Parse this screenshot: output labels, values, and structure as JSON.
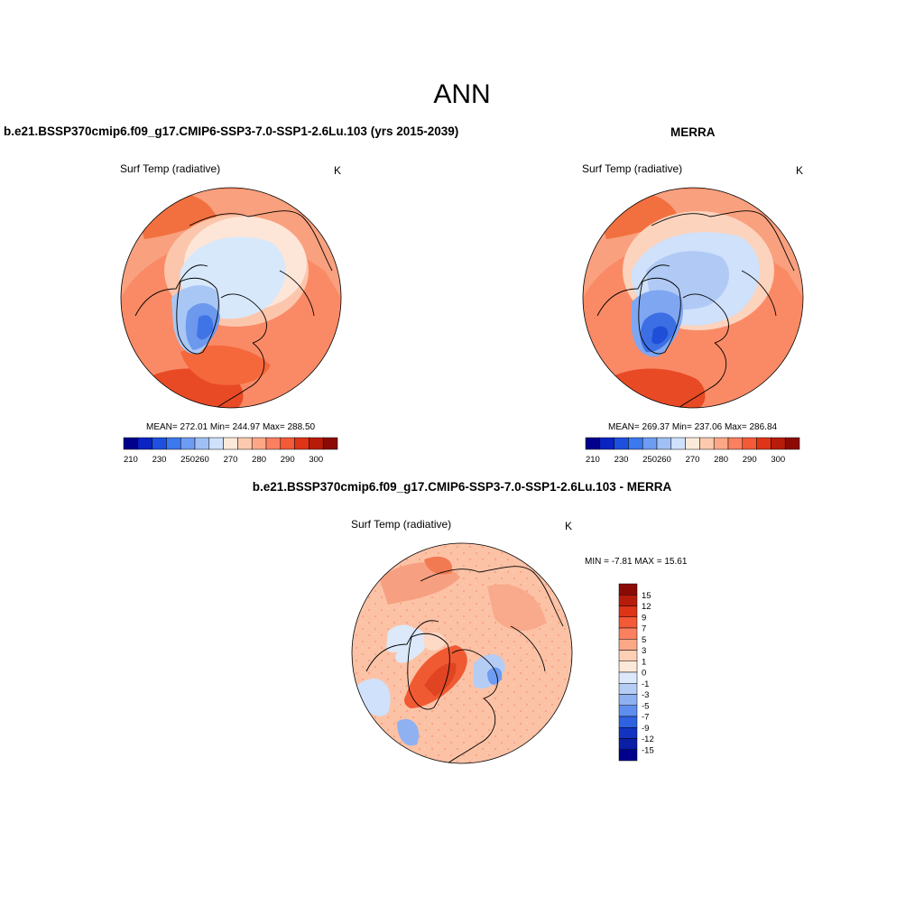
{
  "figure": {
    "title": "ANN"
  },
  "panels": [
    {
      "id": "model",
      "heading": "b.e21.BSSP370cmip6.f09_g17.CMIP6-SSP3-7.0-SSP1-2.6Lu.103 (yrs 2015-2039)",
      "variable": "Surf Temp (radiative)",
      "units": "K",
      "stats": "MEAN= 272.01  Min= 244.97  Max= 288.50",
      "colorbar_labels": [
        "210",
        "230",
        "250",
        "260",
        "270",
        "280",
        "290",
        "300"
      ]
    },
    {
      "id": "merra",
      "heading": "MERRA",
      "variable": "Surf Temp (radiative)",
      "units": "K",
      "stats": "MEAN= 269.37  Min= 237.06  Max= 286.84",
      "colorbar_labels": [
        "210",
        "230",
        "250",
        "260",
        "270",
        "280",
        "290",
        "300"
      ]
    },
    {
      "id": "difference",
      "heading": "b.e21.BSSP370cmip6.f09_g17.CMIP6-SSP3-7.0-SSP1-2.6Lu.103 - MERRA",
      "variable": "Surf Temp (radiative)",
      "units": "K",
      "stats": "MIN =  -7.81 MAX =  15.61",
      "colorbar_labels": [
        "15",
        "12",
        "9",
        "7",
        "5",
        "3",
        "1",
        "0",
        "-1",
        "-3",
        "-5",
        "-7",
        "-9",
        "-12",
        "-15"
      ]
    }
  ],
  "colors": {
    "abs_scale": [
      "#00008c",
      "#0a23c2",
      "#1e50e0",
      "#3c78ee",
      "#6e9cf2",
      "#a0bff5",
      "#cfe1fb",
      "#fde9d9",
      "#fccaae",
      "#fca887",
      "#fa8060",
      "#f35a38",
      "#de3418",
      "#b71c0a",
      "#8c0a05"
    ],
    "diff_scale": [
      "#8c0a05",
      "#b71c0a",
      "#de3418",
      "#f35a38",
      "#fa8060",
      "#fca887",
      "#fdd0b6",
      "#fde9d9",
      "#dce9fa",
      "#b5ccf5",
      "#8fb1f2",
      "#5f8eee",
      "#2f62e0",
      "#1234c0",
      "#0a1ea6",
      "#00008c"
    ],
    "ocean_land_mask": "#ffffff",
    "coastline": "#000000"
  }
}
